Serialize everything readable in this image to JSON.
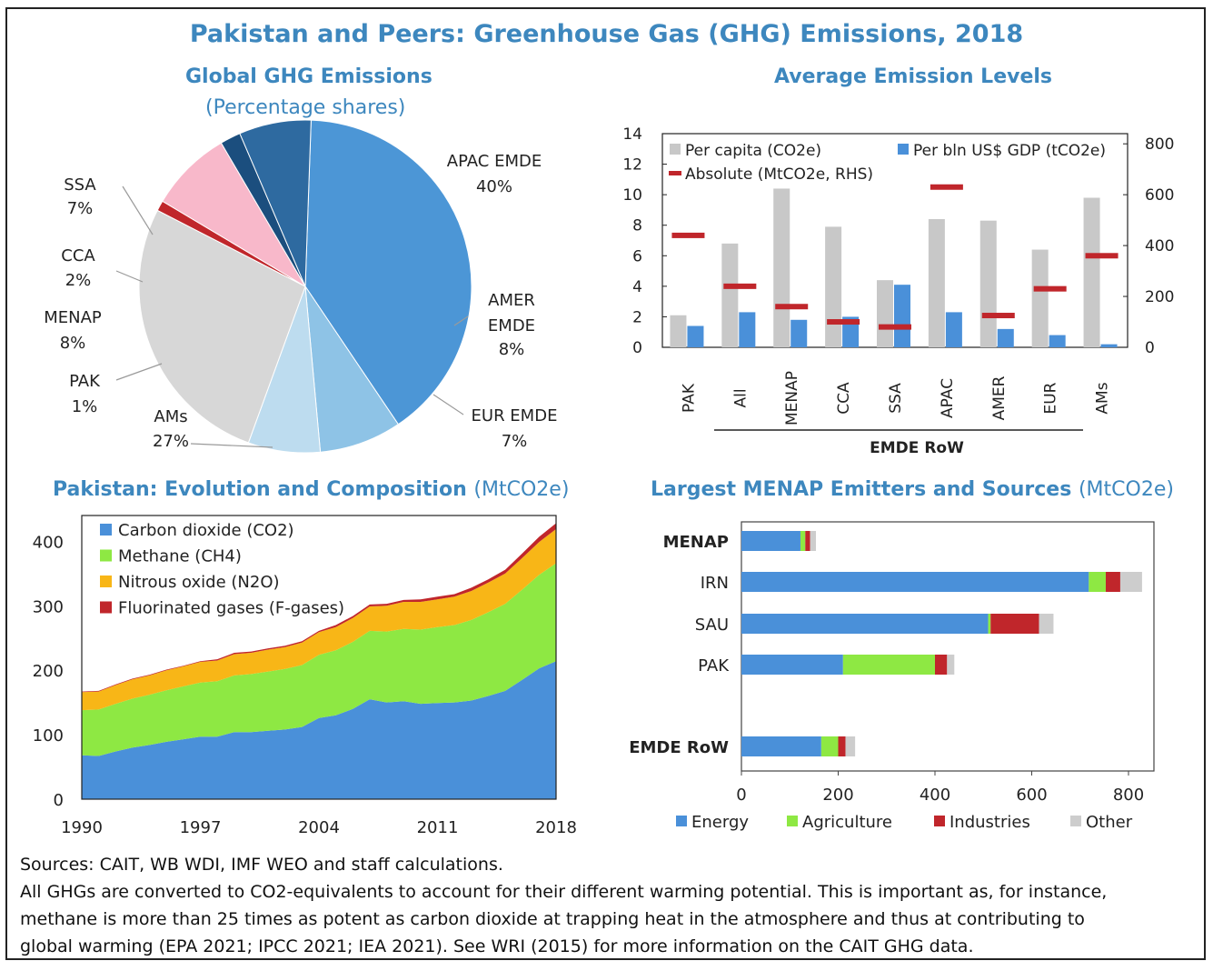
{
  "title": "Pakistan and Peers: Greenhouse Gas (GHG) Emissions, 2018",
  "colors": {
    "title": "#3d87be"
  },
  "sources": "Sources: CAIT, WB WDI, IMF WEO and staff calculations.",
  "note_lines": [
    "All GHGs are converted to CO2-equivalents to account for their different warming potential. This is important as, for instance,",
    "methane is more than 25 times as potent as carbon dioxide at trapping heat in the atmosphere and thus at contributing to",
    "global warming (EPA 2021; IPCC 2021; IEA 2021). See WRI (2015) for more information on the CAIT GHG data."
  ],
  "chart_data": [
    {
      "type": "pie",
      "title": "Global GHG Emissions",
      "subtitle": "(Percentage shares)",
      "slices": [
        {
          "name": "APAC EMDE",
          "value": 40,
          "label": "40%",
          "color": "#4c96d6"
        },
        {
          "name": "AMER EMDE",
          "value": 8,
          "label": "8%",
          "color": "#8ec3e6"
        },
        {
          "name": "EUR EMDE",
          "value": 7,
          "label": "7%",
          "color": "#bddcef"
        },
        {
          "name": "AMs",
          "value": 27,
          "label": "27%",
          "color": "#d7d7d7"
        },
        {
          "name": "PAK",
          "value": 1,
          "label": "1%",
          "color": "#c0262b"
        },
        {
          "name": "MENAP",
          "value": 8,
          "label": "8%",
          "color": "#f8b8ca"
        },
        {
          "name": "CCA",
          "value": 2,
          "label": "2%",
          "color": "#1b4e7e"
        },
        {
          "name": "SSA",
          "value": 7,
          "label": "7%",
          "color": "#2e6aa0"
        }
      ]
    },
    {
      "type": "bar",
      "title": "Average Emission Levels",
      "categories": [
        "PAK",
        "All",
        "MENAP",
        "CCA",
        "SSA",
        "APAC",
        "AMER",
        "EUR",
        "AMs"
      ],
      "group_label": "EMDE RoW",
      "series": [
        {
          "name": "Per capita (CO2e)",
          "axis": "left",
          "color": "#c8c8c8",
          "values": [
            2.1,
            6.8,
            10.4,
            7.9,
            4.4,
            8.4,
            8.3,
            6.4,
            9.8
          ]
        },
        {
          "name": "Per bln US$ GDP (tCO2e)",
          "axis": "left",
          "color": "#4a90d9",
          "values": [
            1.4,
            2.3,
            1.8,
            2.0,
            4.1,
            2.3,
            1.2,
            0.8,
            0.2
          ]
        },
        {
          "name": "Absolute (MtCO2e, RHS)",
          "axis": "right",
          "color": "#c0262b",
          "values": [
            440,
            240,
            160,
            100,
            80,
            630,
            125,
            230,
            360
          ]
        }
      ],
      "ylim_left": [
        0,
        14
      ],
      "yticks_left": [
        0,
        2,
        4,
        6,
        8,
        10,
        12,
        14
      ],
      "ylim_right": [
        0,
        840
      ],
      "yticks_right": [
        0,
        200,
        400,
        600,
        800
      ],
      "legend": "top"
    },
    {
      "type": "area",
      "title": "Pakistan: Evolution and Composition",
      "unit": "(MtCO2e)",
      "x": [
        1990,
        1991,
        1992,
        1993,
        1994,
        1995,
        1996,
        1997,
        1998,
        1999,
        2000,
        2001,
        2002,
        2003,
        2004,
        2005,
        2006,
        2007,
        2008,
        2009,
        2010,
        2011,
        2012,
        2013,
        2014,
        2015,
        2016,
        2017,
        2018
      ],
      "xticks": [
        1990,
        1997,
        2004,
        2011,
        2018
      ],
      "yticks": [
        0,
        100,
        200,
        300,
        400
      ],
      "ylim": [
        0,
        440
      ],
      "series": [
        {
          "name": "Carbon dioxide (CO2)",
          "color": "#4a90d9",
          "values": [
            68,
            67,
            74,
            80,
            84,
            89,
            93,
            97,
            97,
            104,
            104,
            106,
            108,
            112,
            126,
            130,
            140,
            155,
            150,
            152,
            148,
            149,
            150,
            153,
            160,
            168,
            185,
            203,
            214
          ]
        },
        {
          "name": "Methane (CH4)",
          "color": "#8ee843",
          "values": [
            70,
            72,
            74,
            76,
            78,
            80,
            82,
            84,
            86,
            88,
            90,
            92,
            94,
            96,
            98,
            101,
            104,
            106,
            110,
            112,
            115,
            118,
            120,
            125,
            130,
            135,
            140,
            145,
            152
          ]
        },
        {
          "name": "Nitrous oxide (N2O)",
          "color": "#f8b617",
          "values": [
            28,
            28,
            29,
            30,
            30,
            31,
            31,
            32,
            32,
            33,
            33,
            34,
            34,
            35,
            35,
            36,
            37,
            38,
            40,
            42,
            43,
            43,
            44,
            45,
            46,
            47,
            49,
            51,
            53
          ]
        },
        {
          "name": "Fluorinated gases (F-gases)",
          "color": "#c0262b",
          "values": [
            1,
            1,
            1,
            1,
            1,
            1,
            1,
            1,
            2,
            2,
            2,
            2,
            2,
            2,
            2,
            3,
            3,
            3,
            3,
            3,
            4,
            4,
            4,
            5,
            5,
            6,
            7,
            8,
            9
          ]
        }
      ]
    },
    {
      "type": "bar",
      "orientation": "horizontal",
      "stacked": true,
      "title": "Largest MENAP Emitters and Sources",
      "unit": "(MtCO2e)",
      "categories": [
        "MENAP",
        "IRN",
        "SAU",
        "PAK",
        "EMDE RoW"
      ],
      "xlim": [
        0,
        850
      ],
      "xticks": [
        0,
        200,
        400,
        600,
        800
      ],
      "series": [
        {
          "name": "Energy",
          "color": "#4a90d9",
          "values": [
            122,
            718,
            510,
            210,
            165
          ]
        },
        {
          "name": "Agriculture",
          "color": "#8ee843",
          "values": [
            10,
            35,
            5,
            190,
            35
          ]
        },
        {
          "name": "Industries",
          "color": "#c0262b",
          "values": [
            10,
            30,
            100,
            25,
            15
          ]
        },
        {
          "name": "Other",
          "color": "#cdcdcd",
          "values": [
            12,
            45,
            30,
            15,
            20
          ]
        }
      ],
      "legend": "bottom"
    }
  ]
}
